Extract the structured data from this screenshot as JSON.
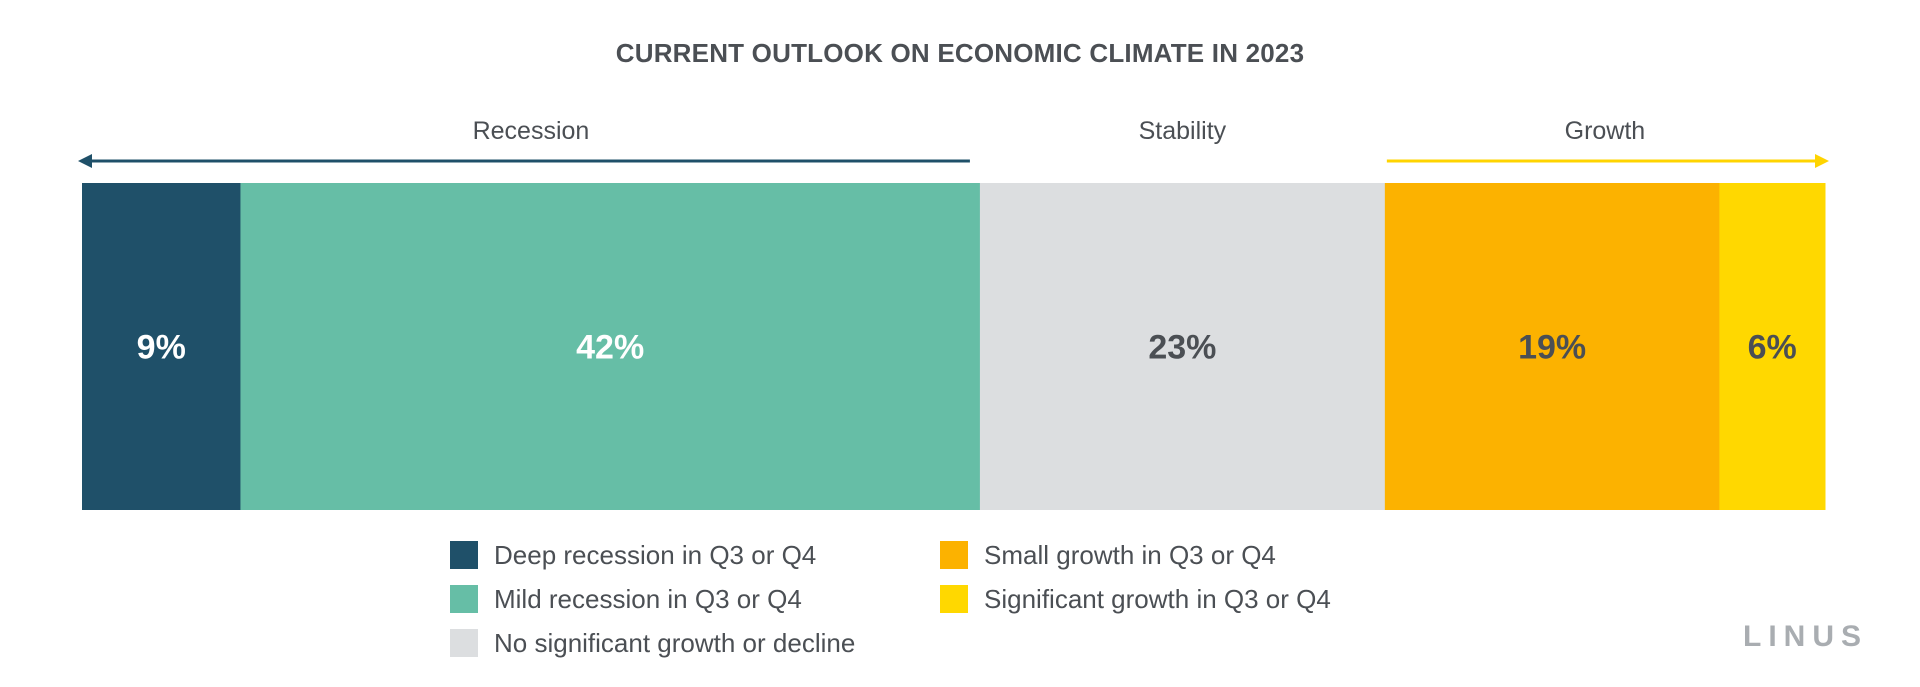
{
  "chart_data": {
    "type": "bar",
    "stacked": true,
    "orientation": "horizontal",
    "title": "CURRENT OUTLOOK ON ECONOMIC CLIMATE IN 2023",
    "unit": "%",
    "groups": [
      {
        "label": "Recession",
        "direction": "left",
        "color": "#1f5069"
      },
      {
        "label": "Stability",
        "direction": "none",
        "color": "#4b4f54"
      },
      {
        "label": "Growth",
        "direction": "right",
        "color": "#ffd400"
      }
    ],
    "series": [
      {
        "name": "Deep recession in Q3 or Q4",
        "value": 9,
        "label": "9%",
        "color": "#1f5069",
        "label_color": "#ffffff",
        "group": "Recession"
      },
      {
        "name": "Mild recession in Q3 or Q4",
        "value": 42,
        "label": "42%",
        "color": "#66bea6",
        "label_color": "#ffffff",
        "group": "Recession"
      },
      {
        "name": "No significant growth or decline",
        "value": 23,
        "label": "23%",
        "color": "#dcdee0",
        "label_color": "#4b4f54",
        "group": "Stability"
      },
      {
        "name": "Small growth in Q3 or Q4",
        "value": 19,
        "label": "19%",
        "color": "#fcb200",
        "label_color": "#4b4f54",
        "group": "Growth"
      },
      {
        "name": "Significant growth in Q3 or Q4",
        "value": 6,
        "label": "6%",
        "color": "#ffd800",
        "label_color": "#4b4f54",
        "group": "Growth"
      }
    ],
    "legend": {
      "placement": "bottom",
      "columns": 2
    }
  },
  "brand": {
    "logo_text": "LINUS"
  }
}
